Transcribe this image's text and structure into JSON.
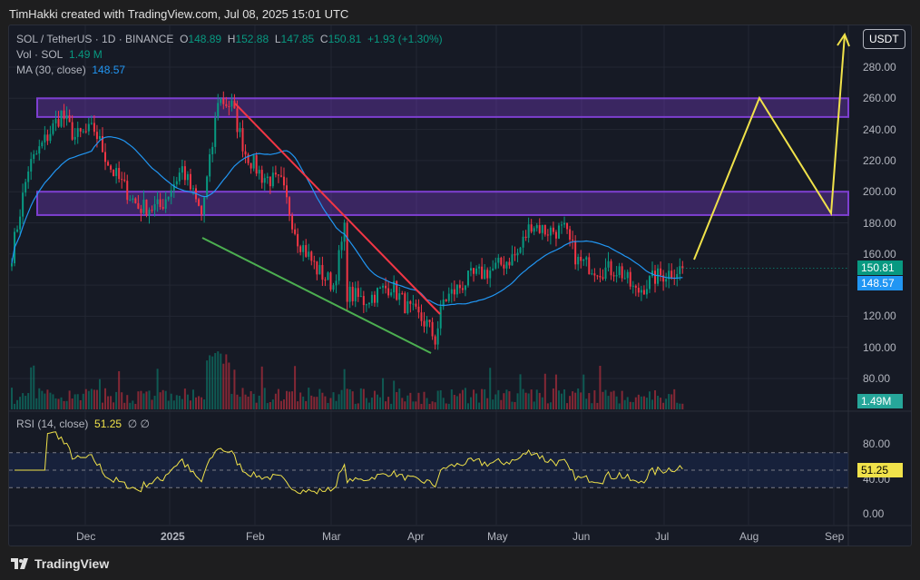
{
  "credit": "TimHakki created with TradingView.com, Jul 08, 2025 15:01 UTC",
  "legend": {
    "symbol": "SOL / TetherUS · 1D · BINANCE",
    "o_label": "O",
    "o": "148.89",
    "h_label": "H",
    "h": "152.88",
    "l_label": "L",
    "l": "147.85",
    "c_label": "C",
    "c": "150.81",
    "change": "+1.93 (+1.30%)",
    "vol_label": "Vol · SOL",
    "vol": "1.49 M",
    "ma_label": "MA (30, close)",
    "ma": "148.57",
    "rsi_label": "RSI (14, close)",
    "rsi": "51.25",
    "rsi_extra": "∅ ∅"
  },
  "currency_button": "USDT",
  "price_ticks": [
    "280.00",
    "260.00",
    "240.00",
    "220.00",
    "200.00",
    "180.00",
    "160.00",
    "120.00",
    "100.00",
    "80.00"
  ],
  "price_tags": {
    "last": "150.81",
    "ma": "148.57",
    "vol": "1.49M",
    "rsi": "51.25"
  },
  "rsi_ticks": [
    "80.00",
    "40.00",
    "0.00"
  ],
  "time_ticks": [
    "Dec",
    "2025",
    "Feb",
    "Mar",
    "Apr",
    "May",
    "Jun",
    "Jul",
    "Aug",
    "Sep"
  ],
  "brand": "TradingView",
  "colors": {
    "up": "#089981",
    "down": "#f23645",
    "ma": "#2196f3",
    "rsi": "#f0e24a",
    "zone": "#7e3fd1"
  },
  "chart_data": {
    "type": "candlestick",
    "title": "SOL / TetherUS 1D",
    "ylim": [
      70,
      290
    ],
    "key_closes": [
      [
        0,
        160
      ],
      [
        6,
        215
      ],
      [
        11,
        230
      ],
      [
        18,
        250
      ],
      [
        23,
        235
      ],
      [
        30,
        240
      ],
      [
        36,
        215
      ],
      [
        46,
        190
      ],
      [
        54,
        190
      ],
      [
        62,
        215
      ],
      [
        69,
        185
      ],
      [
        73,
        230
      ],
      [
        75,
        260
      ],
      [
        80,
        255
      ],
      [
        85,
        225
      ],
      [
        91,
        210
      ],
      [
        98,
        205
      ],
      [
        104,
        170
      ],
      [
        111,
        150
      ],
      [
        117,
        140
      ],
      [
        121,
        175
      ],
      [
        122,
        135
      ],
      [
        128,
        130
      ],
      [
        138,
        140
      ],
      [
        144,
        125
      ],
      [
        151,
        115
      ],
      [
        154,
        105
      ],
      [
        157,
        130
      ],
      [
        167,
        145
      ],
      [
        175,
        150
      ],
      [
        184,
        160
      ],
      [
        189,
        180
      ],
      [
        194,
        175
      ],
      [
        201,
        175
      ],
      [
        206,
        155
      ],
      [
        214,
        150
      ],
      [
        221,
        150
      ],
      [
        227,
        135
      ],
      [
        234,
        145
      ],
      [
        244,
        151
      ]
    ],
    "zones": [
      [
        248,
        260
      ],
      [
        185,
        200
      ]
    ]
  }
}
